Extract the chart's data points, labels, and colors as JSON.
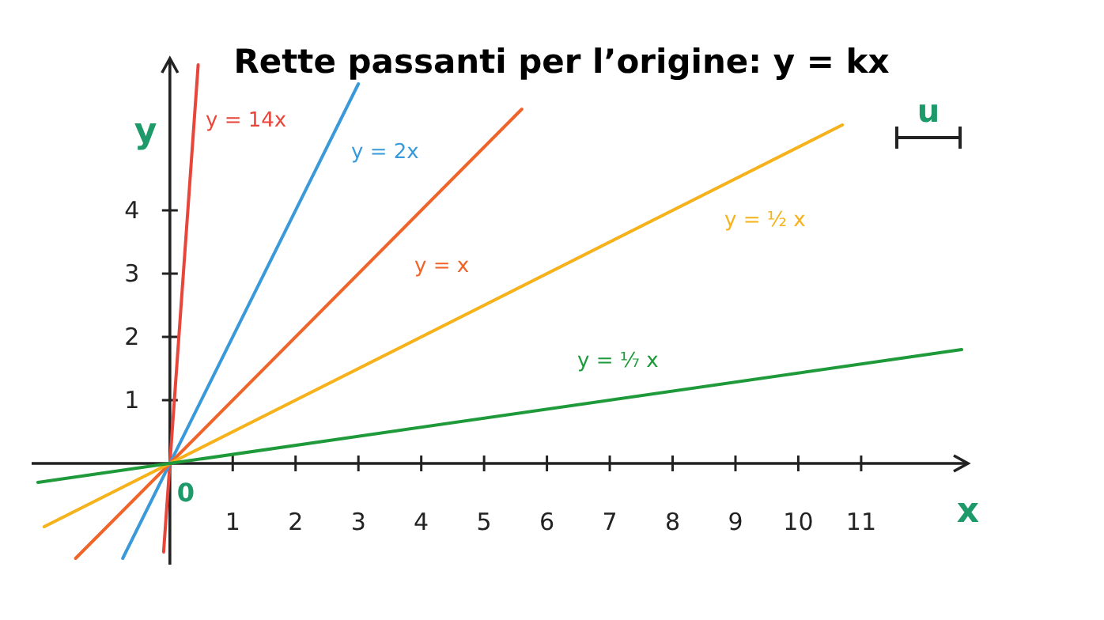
{
  "chart_data": {
    "type": "line",
    "title": "Rette passanti per l’origine: y = kx",
    "xlabel": "x",
    "ylabel": "y",
    "xlim": [
      -2.2,
      12.7
    ],
    "ylim": [
      -1.6,
      6.4
    ],
    "xticks": [
      1,
      2,
      3,
      4,
      5,
      6,
      7,
      8,
      9,
      10,
      11
    ],
    "yticks": [
      1,
      2,
      3,
      4
    ],
    "grid": false,
    "legend": false,
    "marker": "none",
    "line_style": "solid",
    "series": [
      {
        "name": "y = 14x",
        "color": "#e8463a",
        "x": [
          -0.1,
          0.45
        ],
        "values": [
          -1.4,
          6.3
        ]
      },
      {
        "name": "y = 2x",
        "color": "#3a9ad9",
        "x": [
          -0.75,
          3
        ],
        "values": [
          -1.5,
          6
        ]
      },
      {
        "name": "y = x",
        "color": "#f0642a",
        "x": [
          -1.5,
          5.6
        ],
        "values": [
          -1.5,
          5.6
        ]
      },
      {
        "name": "y = ½ x",
        "color": "#f5b21b",
        "x": [
          -2,
          10.7
        ],
        "values": [
          -1,
          5.35
        ]
      },
      {
        "name": "y = ⅐ x",
        "color": "#1e9a3a",
        "x": [
          -2.1,
          12.6
        ],
        "values": [
          -0.3,
          1.8
        ]
      }
    ],
    "annotations": [
      "u",
      {
        "text": "0",
        "x": 0,
        "y": 0
      }
    ]
  }
}
